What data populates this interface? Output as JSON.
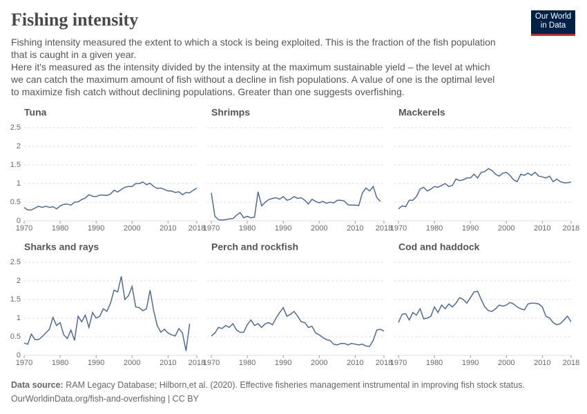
{
  "header": {
    "title": "Fishing intensity",
    "subtitle": [
      "Fishing intensity measured the extent to which a stock is being exploited. This is the fraction of the fish population that is caught in a given year.",
      "Here it's measured as the intensity divided by the intensity at the maximum sustainable yield – the level at which we can catch the maximum amount of fish without a decline in fish populations. A value of one is the optimal level to maximize fish catch without declining populations. Greater than one suggests overfishing."
    ],
    "logo": [
      "Our World",
      "in Data"
    ]
  },
  "footer": {
    "source_label": "Data source:",
    "source": "RAM Legacy Database; Hilborn,et al. (2020). Effective fisheries management instrumental in improving fish stock status.",
    "url": "OurWorldinData.org/fish-and-overfishing | CC BY"
  },
  "chart_data": [
    {
      "type": "line",
      "title": "Tuna",
      "color": "#4c6a9c",
      "grid": true,
      "x": [
        1970,
        1971,
        1972,
        1973,
        1974,
        1975,
        1976,
        1977,
        1978,
        1979,
        1980,
        1981,
        1982,
        1983,
        1984,
        1985,
        1986,
        1987,
        1988,
        1989,
        1990,
        1991,
        1992,
        1993,
        1994,
        1995,
        1996,
        1997,
        1998,
        1999,
        2000,
        2001,
        2002,
        2003,
        2004,
        2005,
        2006,
        2007,
        2008,
        2009,
        2010,
        2011,
        2012,
        2013,
        2014,
        2015,
        2016,
        2017,
        2018
      ],
      "values": [
        0.36,
        0.29,
        0.29,
        0.34,
        0.39,
        0.36,
        0.39,
        0.36,
        0.38,
        0.32,
        0.4,
        0.44,
        0.45,
        0.42,
        0.5,
        0.51,
        0.57,
        0.61,
        0.7,
        0.66,
        0.65,
        0.69,
        0.69,
        0.68,
        0.72,
        0.82,
        0.77,
        0.84,
        0.9,
        0.92,
        0.92,
        1.0,
        1.0,
        1.04,
        0.97,
        1.01,
        0.92,
        0.87,
        0.88,
        0.84,
        0.8,
        0.8,
        0.76,
        0.78,
        0.7,
        0.76,
        0.75,
        0.82,
        0.88
      ],
      "xlim": [
        1970,
        2018
      ],
      "xticks": [
        1970,
        1980,
        1990,
        2000,
        2010,
        2018
      ],
      "ylim": [
        0,
        2.5
      ],
      "yticks": [
        0,
        0.5,
        1,
        1.5,
        2,
        2.5
      ]
    },
    {
      "type": "line",
      "title": "Shrimps",
      "color": "#4c6a9c",
      "grid": true,
      "x": [
        1970,
        1971,
        1972,
        1973,
        1974,
        1975,
        1976,
        1977,
        1978,
        1979,
        1980,
        1981,
        1982,
        1983,
        1984,
        1985,
        1986,
        1987,
        1988,
        1989,
        1990,
        1991,
        1992,
        1993,
        1994,
        1995,
        1996,
        1997,
        1998,
        1999,
        2000,
        2001,
        2002,
        2003,
        2004,
        2005,
        2006,
        2007,
        2008,
        2009,
        2010,
        2011,
        2012,
        2013,
        2014,
        2015,
        2016,
        2017,
        2018
      ],
      "values": [
        0.75,
        0.12,
        0.03,
        0.02,
        0.03,
        0.05,
        0.06,
        0.15,
        0.22,
        0.08,
        0.12,
        0.08,
        0.1,
        0.78,
        0.4,
        0.5,
        0.57,
        0.6,
        0.62,
        0.58,
        0.65,
        0.55,
        0.58,
        0.65,
        0.6,
        0.62,
        0.55,
        0.45,
        0.58,
        0.52,
        0.48,
        0.52,
        0.47,
        0.5,
        0.48,
        0.55,
        0.55,
        0.53,
        0.43,
        0.42,
        0.42,
        0.41,
        0.75,
        0.88,
        0.8,
        0.92,
        0.62,
        0.52,
        null
      ],
      "xlim": [
        1970,
        2018
      ],
      "xticks": [
        1970,
        1980,
        1990,
        2000,
        2010,
        2018
      ],
      "ylim": [
        0,
        2.5
      ],
      "yticks": [
        0,
        0.5,
        1,
        1.5,
        2,
        2.5
      ]
    },
    {
      "type": "line",
      "title": "Mackerels",
      "color": "#4c6a9c",
      "grid": true,
      "x": [
        1970,
        1971,
        1972,
        1973,
        1974,
        1975,
        1976,
        1977,
        1978,
        1979,
        1980,
        1981,
        1982,
        1983,
        1984,
        1985,
        1986,
        1987,
        1988,
        1989,
        1990,
        1991,
        1992,
        1993,
        1994,
        1995,
        1996,
        1997,
        1998,
        1999,
        2000,
        2001,
        2002,
        2003,
        2004,
        2005,
        2006,
        2007,
        2008,
        2009,
        2010,
        2011,
        2012,
        2013,
        2014,
        2015,
        2016,
        2017,
        2018
      ],
      "values": [
        0.32,
        0.4,
        0.38,
        0.55,
        0.55,
        0.65,
        0.85,
        0.9,
        0.8,
        0.85,
        0.92,
        0.9,
        0.95,
        1.0,
        0.92,
        0.95,
        1.12,
        1.08,
        1.1,
        1.15,
        1.15,
        1.25,
        1.15,
        1.3,
        1.32,
        1.4,
        1.35,
        1.25,
        1.2,
        1.28,
        1.3,
        1.22,
        1.1,
        1.05,
        1.25,
        1.22,
        1.28,
        1.22,
        1.3,
        1.2,
        1.18,
        1.15,
        1.2,
        1.05,
        1.12,
        1.05,
        1.02,
        1.02,
        1.04
      ],
      "xlim": [
        1970,
        2018
      ],
      "xticks": [
        1970,
        1980,
        1990,
        2000,
        2010,
        2018
      ],
      "ylim": [
        0,
        2.5
      ],
      "yticks": [
        0,
        0.5,
        1,
        1.5,
        2,
        2.5
      ]
    },
    {
      "type": "line",
      "title": "Sharks and rays",
      "color": "#4c6a9c",
      "grid": true,
      "x": [
        1970,
        1971,
        1972,
        1973,
        1974,
        1975,
        1976,
        1977,
        1978,
        1979,
        1980,
        1981,
        1982,
        1983,
        1984,
        1985,
        1986,
        1987,
        1988,
        1989,
        1990,
        1991,
        1992,
        1993,
        1994,
        1995,
        1996,
        1997,
        1998,
        1999,
        2000,
        2001,
        2002,
        2003,
        2004,
        2005,
        2006,
        2007,
        2008,
        2009,
        2010,
        2011,
        2012,
        2013,
        2014,
        2015,
        2016,
        2017,
        2018
      ],
      "values": [
        0.33,
        0.3,
        0.57,
        0.42,
        0.42,
        0.5,
        0.6,
        0.7,
        1.02,
        0.8,
        0.88,
        0.55,
        0.45,
        0.68,
        0.4,
        1.05,
        0.9,
        1.08,
        0.75,
        1.15,
        1.0,
        1.05,
        1.25,
        1.18,
        1.4,
        1.75,
        1.7,
        2.12,
        1.5,
        1.6,
        1.85,
        1.3,
        1.28,
        1.2,
        1.25,
        1.75,
        1.2,
        0.8,
        0.62,
        0.7,
        0.6,
        0.55,
        0.52,
        0.72,
        0.6,
        0.12,
        0.85,
        null,
        null
      ],
      "xlim": [
        1970,
        2018
      ],
      "xticks": [
        1970,
        1980,
        1990,
        2000,
        2010,
        2018
      ],
      "ylim": [
        0,
        2.5
      ],
      "yticks": [
        0,
        0.5,
        1,
        1.5,
        2,
        2.5
      ]
    },
    {
      "type": "line",
      "title": "Perch and rockfish",
      "color": "#4c6a9c",
      "grid": true,
      "x": [
        1970,
        1971,
        1972,
        1973,
        1974,
        1975,
        1976,
        1977,
        1978,
        1979,
        1980,
        1981,
        1982,
        1983,
        1984,
        1985,
        1986,
        1987,
        1988,
        1989,
        1990,
        1991,
        1992,
        1993,
        1994,
        1995,
        1996,
        1997,
        1998,
        1999,
        2000,
        2001,
        2002,
        2003,
        2004,
        2005,
        2006,
        2007,
        2008,
        2009,
        2010,
        2011,
        2012,
        2013,
        2014,
        2015,
        2016,
        2017,
        2018
      ],
      "values": [
        0.52,
        0.6,
        0.75,
        0.72,
        0.8,
        0.75,
        0.85,
        0.68,
        0.62,
        0.62,
        0.82,
        0.95,
        0.8,
        0.85,
        0.75,
        0.85,
        0.88,
        0.82,
        1.0,
        1.15,
        1.28,
        1.05,
        1.1,
        1.18,
        1.05,
        0.9,
        0.88,
        0.75,
        0.78,
        0.6,
        0.55,
        0.48,
        0.42,
        0.4,
        0.3,
        0.28,
        0.32,
        0.32,
        0.28,
        0.32,
        0.3,
        0.28,
        0.3,
        0.25,
        0.24,
        0.4,
        0.68,
        0.7,
        0.65
      ],
      "xlim": [
        1970,
        2018
      ],
      "xticks": [
        1970,
        1980,
        1990,
        2000,
        2010,
        2018
      ],
      "ylim": [
        0,
        2.5
      ],
      "yticks": [
        0,
        0.5,
        1,
        1.5,
        2,
        2.5
      ]
    },
    {
      "type": "line",
      "title": "Cod and haddock",
      "color": "#4c6a9c",
      "grid": true,
      "x": [
        1970,
        1971,
        1972,
        1973,
        1974,
        1975,
        1976,
        1977,
        1978,
        1979,
        1980,
        1981,
        1982,
        1983,
        1984,
        1985,
        1986,
        1987,
        1988,
        1989,
        1990,
        1991,
        1992,
        1993,
        1994,
        1995,
        1996,
        1997,
        1998,
        1999,
        2000,
        2001,
        2002,
        2003,
        2004,
        2005,
        2006,
        2007,
        2008,
        2009,
        2010,
        2011,
        2012,
        2013,
        2014,
        2015,
        2016,
        2017,
        2018
      ],
      "values": [
        0.88,
        1.1,
        1.12,
        0.95,
        1.15,
        1.08,
        1.25,
        0.98,
        1.0,
        1.05,
        1.3,
        1.15,
        1.35,
        1.25,
        1.38,
        1.3,
        1.4,
        1.55,
        1.5,
        1.4,
        1.55,
        1.7,
        1.72,
        1.5,
        1.3,
        1.2,
        1.18,
        1.25,
        1.35,
        1.32,
        1.35,
        1.42,
        1.38,
        1.3,
        1.25,
        1.22,
        1.38,
        1.4,
        1.4,
        1.38,
        1.3,
        1.05,
        1.0,
        0.88,
        0.82,
        0.85,
        0.95,
        1.05,
        0.9
      ],
      "xlim": [
        1970,
        2018
      ],
      "xticks": [
        1970,
        1980,
        1990,
        2000,
        2010,
        2018
      ],
      "ylim": [
        0,
        2.5
      ],
      "yticks": [
        0,
        0.5,
        1,
        1.5,
        2,
        2.5
      ]
    }
  ]
}
